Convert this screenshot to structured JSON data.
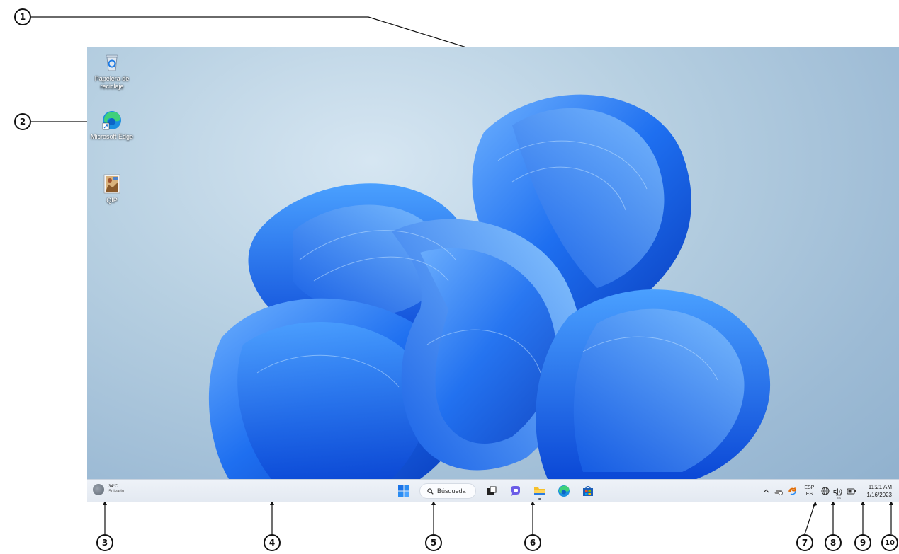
{
  "desktop": {
    "icons": [
      {
        "label": "Papelera de reciclaje",
        "icon": "recycle-bin-icon"
      },
      {
        "label": "Microsoft Edge",
        "icon": "edge-icon"
      },
      {
        "label": "QIP",
        "icon": "qip-image-icon"
      }
    ]
  },
  "taskbar": {
    "weather": {
      "temp": "34°C",
      "condition": "Soleado"
    },
    "search_label": "Búsqueda",
    "apps": [
      "start-icon",
      "task-view-icon",
      "teams-chat-icon",
      "file-explorer-icon",
      "edge-icon",
      "store-icon"
    ],
    "tray": {
      "lang_top": "ESP",
      "lang_bottom": "ES",
      "lang_mini_top": "ESP",
      "lang_mini_bottom": "ES",
      "time": "11:21 AM",
      "date": "1/16/2023"
    }
  },
  "annotations": [
    "1",
    "2",
    "3",
    "4",
    "5",
    "6",
    "7",
    "8",
    "9",
    "10"
  ],
  "colors": {
    "taskbar_bg": "#e8edf4",
    "windows_blue": "#1a73e8",
    "wallpaper_bg": "#a9c5dc"
  }
}
